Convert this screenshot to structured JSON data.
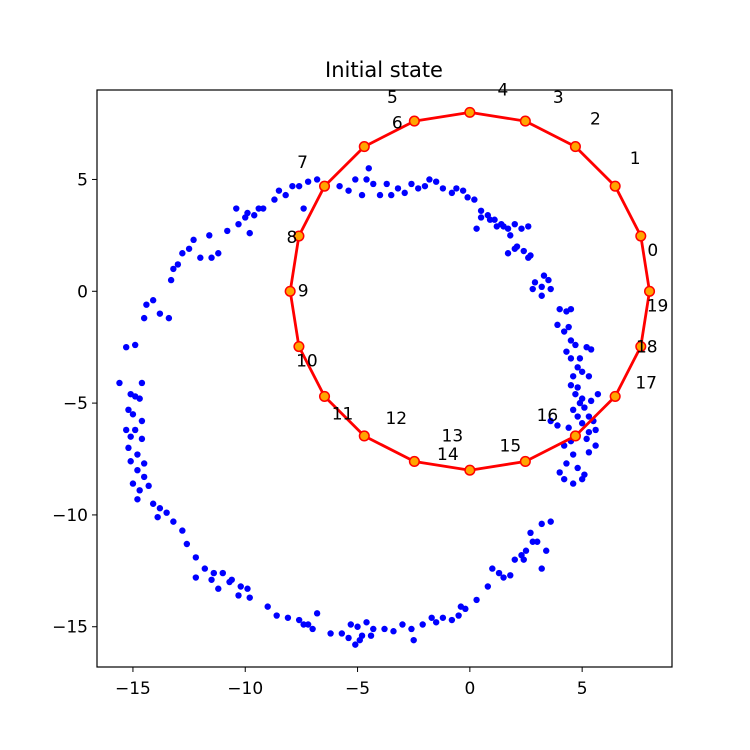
{
  "chart_data": {
    "type": "scatter",
    "title": "Initial state",
    "xlabel": "",
    "ylabel": "",
    "xlim": [
      -16.6,
      9.0
    ],
    "ylim": [
      -16.8,
      9.0
    ],
    "xticks": [
      -15,
      -10,
      -5,
      0,
      5
    ],
    "yticks": [
      -15,
      -10,
      -5,
      0,
      5
    ],
    "xtick_labels": [
      "−15",
      "−10",
      "−5",
      "0",
      "5"
    ],
    "ytick_labels": [
      "−15",
      "−10",
      "−5",
      "0",
      "5"
    ],
    "grid": false,
    "legend": "none",
    "colors": {
      "points": "#0000ff",
      "path": "#ff0000",
      "node_fill": "#ffa500",
      "node_edge": "#ff0000"
    },
    "series": [
      {
        "kind": "scatter",
        "points": [
          [
            -15.6,
            -4.1
          ],
          [
            -15.1,
            -4.6
          ],
          [
            -15.2,
            -5.3
          ],
          [
            -14.9,
            -4.7
          ],
          [
            -14.6,
            -4.1
          ],
          [
            -14.7,
            -4.8
          ],
          [
            -15.0,
            -5.5
          ],
          [
            -14.6,
            -5.8
          ],
          [
            -15.3,
            -6.2
          ],
          [
            -15.1,
            -6.5
          ],
          [
            -14.9,
            -6.2
          ],
          [
            -14.6,
            -6.6
          ],
          [
            -15.2,
            -7.0
          ],
          [
            -14.8,
            -7.3
          ],
          [
            -15.1,
            -7.6
          ],
          [
            -14.5,
            -7.7
          ],
          [
            -14.8,
            -8.0
          ],
          [
            -14.5,
            -8.3
          ],
          [
            -15.0,
            -8.6
          ],
          [
            -14.7,
            -8.9
          ],
          [
            -14.3,
            -8.7
          ],
          [
            -14.8,
            -9.3
          ],
          [
            -14.1,
            -9.5
          ],
          [
            -13.8,
            -9.7
          ],
          [
            -13.9,
            -10.1
          ],
          [
            -13.5,
            -9.9
          ],
          [
            -13.2,
            -10.3
          ],
          [
            -12.8,
            -10.7
          ],
          [
            -12.6,
            -11.3
          ],
          [
            -12.2,
            -11.9
          ],
          [
            -11.8,
            -12.4
          ],
          [
            -11.4,
            -12.6
          ],
          [
            -11.0,
            -12.6
          ],
          [
            -10.6,
            -12.9
          ],
          [
            -10.2,
            -13.2
          ],
          [
            -9.8,
            -13.7
          ],
          [
            -12.2,
            -12.8
          ],
          [
            -11.5,
            -12.9
          ],
          [
            -11.2,
            -13.3
          ],
          [
            -10.7,
            -13.0
          ],
          [
            -10.3,
            -13.6
          ],
          [
            -9.9,
            -13.3
          ],
          [
            -9.0,
            -14.1
          ],
          [
            -8.6,
            -14.5
          ],
          [
            -8.1,
            -14.6
          ],
          [
            -7.6,
            -14.7
          ],
          [
            -7.2,
            -14.9
          ],
          [
            -7.0,
            -15.1
          ],
          [
            -7.4,
            -14.9
          ],
          [
            -6.8,
            -14.4
          ],
          [
            -6.2,
            -15.3
          ],
          [
            -5.7,
            -15.3
          ],
          [
            -5.3,
            -14.9
          ],
          [
            -5.0,
            -15.0
          ],
          [
            -4.8,
            -15.4
          ],
          [
            -4.6,
            -14.8
          ],
          [
            -4.3,
            -15.1
          ],
          [
            -5.1,
            -15.8
          ],
          [
            -5.4,
            -15.5
          ],
          [
            -4.9,
            -15.6
          ],
          [
            -4.4,
            -15.4
          ],
          [
            -3.8,
            -15.1
          ],
          [
            -3.4,
            -15.2
          ],
          [
            -3.0,
            -14.9
          ],
          [
            -2.6,
            -15.1
          ],
          [
            -2.5,
            -15.6
          ],
          [
            -2.1,
            -14.9
          ],
          [
            -1.7,
            -14.6
          ],
          [
            -1.5,
            -14.8
          ],
          [
            -1.2,
            -14.6
          ],
          [
            -0.8,
            -14.7
          ],
          [
            -0.5,
            -14.5
          ],
          [
            -0.2,
            -14.2
          ],
          [
            0.3,
            -13.8
          ],
          [
            -0.4,
            -14.1
          ],
          [
            0.8,
            -13.2
          ],
          [
            1.3,
            -12.6
          ],
          [
            1.0,
            -12.4
          ],
          [
            1.5,
            -12.8
          ],
          [
            1.8,
            -12.7
          ],
          [
            2.0,
            -12.0
          ],
          [
            2.3,
            -11.8
          ],
          [
            2.5,
            -11.6
          ],
          [
            2.8,
            -11.2
          ],
          [
            3.2,
            -10.4
          ],
          [
            3.6,
            -10.3
          ],
          [
            3.0,
            -11.2
          ],
          [
            3.4,
            -11.6
          ],
          [
            3.2,
            -12.4
          ],
          [
            2.7,
            -10.8
          ],
          [
            2.4,
            -12.0
          ],
          [
            -15.3,
            -2.5
          ],
          [
            -14.9,
            -2.4
          ],
          [
            -14.5,
            -1.2
          ],
          [
            -14.4,
            -0.6
          ],
          [
            -14.1,
            -0.4
          ],
          [
            -13.8,
            -1.0
          ],
          [
            -13.4,
            -1.2
          ],
          [
            -13.3,
            0.5
          ],
          [
            -13.2,
            1.0
          ],
          [
            -13.0,
            1.2
          ],
          [
            -12.8,
            1.7
          ],
          [
            -12.5,
            1.9
          ],
          [
            -12.3,
            2.3
          ],
          [
            -12.0,
            1.5
          ],
          [
            -11.5,
            1.5
          ],
          [
            -11.6,
            2.5
          ],
          [
            -11.2,
            1.7
          ],
          [
            -10.8,
            2.7
          ],
          [
            -10.4,
            3.7
          ],
          [
            -10.3,
            3.0
          ],
          [
            -10.0,
            3.3
          ],
          [
            -9.9,
            3.5
          ],
          [
            -9.8,
            2.6
          ],
          [
            -9.6,
            3.4
          ],
          [
            -9.4,
            3.7
          ],
          [
            -9.2,
            3.7
          ],
          [
            -8.7,
            4.1
          ],
          [
            -8.5,
            4.5
          ],
          [
            -8.2,
            4.3
          ],
          [
            -7.9,
            4.7
          ],
          [
            -7.6,
            4.7
          ],
          [
            -7.4,
            3.7
          ],
          [
            -7.2,
            4.9
          ],
          [
            -6.8,
            5.0
          ],
          [
            -6.4,
            4.7
          ],
          [
            -5.8,
            4.7
          ],
          [
            -5.4,
            4.5
          ],
          [
            -5.1,
            5.0
          ],
          [
            -4.8,
            4.3
          ],
          [
            -4.6,
            5.0
          ],
          [
            -4.5,
            5.5
          ],
          [
            -4.3,
            4.8
          ],
          [
            -4.0,
            4.3
          ],
          [
            -3.7,
            4.8
          ],
          [
            -3.5,
            4.3
          ],
          [
            -3.2,
            4.6
          ],
          [
            -2.9,
            4.4
          ],
          [
            -2.6,
            4.8
          ],
          [
            -2.3,
            4.6
          ],
          [
            -2.0,
            4.7
          ],
          [
            -1.8,
            5.0
          ],
          [
            -1.5,
            4.9
          ],
          [
            -1.2,
            4.6
          ],
          [
            -0.8,
            4.4
          ],
          [
            -0.6,
            4.6
          ],
          [
            -0.3,
            4.5
          ],
          [
            -0.1,
            4.2
          ],
          [
            0.2,
            4.1
          ],
          [
            0.5,
            3.6
          ],
          [
            0.8,
            3.4
          ],
          [
            1.1,
            3.2
          ],
          [
            1.4,
            3.0
          ],
          [
            1.7,
            2.8
          ],
          [
            2.0,
            3.0
          ],
          [
            2.3,
            2.8
          ],
          [
            2.6,
            2.9
          ],
          [
            0.3,
            2.8
          ],
          [
            0.5,
            3.3
          ],
          [
            0.9,
            3.2
          ],
          [
            1.2,
            2.9
          ],
          [
            1.5,
            2.9
          ],
          [
            1.8,
            2.5
          ],
          [
            2.1,
            2.0
          ],
          [
            2.4,
            1.8
          ],
          [
            2.7,
            1.6
          ],
          [
            1.7,
            1.7
          ],
          [
            2.0,
            1.9
          ],
          [
            2.6,
            1.5
          ],
          [
            2.9,
            0.4
          ],
          [
            3.2,
            0.2
          ],
          [
            3.5,
            0.5
          ],
          [
            3.3,
            0.7
          ],
          [
            3.6,
            0.1
          ],
          [
            2.8,
            0.1
          ],
          [
            3.2,
            -0.2
          ],
          [
            4.0,
            -0.8
          ],
          [
            4.3,
            -0.9
          ],
          [
            4.5,
            -0.8
          ],
          [
            3.9,
            -1.5
          ],
          [
            4.2,
            -1.8
          ],
          [
            4.4,
            -1.6
          ],
          [
            4.5,
            -2.2
          ],
          [
            4.7,
            -2.4
          ],
          [
            4.3,
            -2.7
          ],
          [
            4.5,
            -3.0
          ],
          [
            4.8,
            -3.4
          ],
          [
            4.9,
            -3.0
          ],
          [
            5.2,
            -2.5
          ],
          [
            5.4,
            -2.6
          ],
          [
            5.0,
            -3.6
          ],
          [
            5.3,
            -3.8
          ],
          [
            4.6,
            -3.8
          ],
          [
            4.5,
            -4.2
          ],
          [
            4.7,
            -4.6
          ],
          [
            4.9,
            -5.0
          ],
          [
            5.1,
            -5.2
          ],
          [
            4.6,
            -5.3
          ],
          [
            4.8,
            -5.6
          ],
          [
            5.0,
            -5.9
          ],
          [
            5.3,
            -6.3
          ],
          [
            4.4,
            -6.1
          ],
          [
            4.5,
            -6.7
          ],
          [
            4.2,
            -6.9
          ],
          [
            4.6,
            -7.3
          ],
          [
            4.3,
            -7.7
          ],
          [
            4.8,
            -7.9
          ],
          [
            5.0,
            -8.4
          ],
          [
            4.6,
            -8.6
          ],
          [
            5.1,
            -8.2
          ],
          [
            5.3,
            -7.2
          ],
          [
            5.6,
            -6.9
          ],
          [
            5.2,
            -6.6
          ],
          [
            4.2,
            -8.4
          ],
          [
            3.6,
            -5.8
          ],
          [
            3.9,
            -6.0
          ],
          [
            5.5,
            -5.8
          ],
          [
            5.7,
            -4.6
          ],
          [
            4.8,
            -4.3
          ],
          [
            5.0,
            -4.8
          ],
          [
            5.3,
            -5.6
          ],
          [
            5.6,
            -6.2
          ],
          [
            5.4,
            -4.9
          ],
          [
            4.0,
            -8.1
          ]
        ]
      },
      {
        "kind": "path",
        "closed": true,
        "nodes": [
          {
            "label": "0",
            "x": 7.61,
            "y": 2.47
          },
          {
            "label": "1",
            "x": 6.47,
            "y": 4.7
          },
          {
            "label": "2",
            "x": 4.7,
            "y": 6.47
          },
          {
            "label": "3",
            "x": 2.47,
            "y": 7.61
          },
          {
            "label": "4",
            "x": 0.0,
            "y": 8.0
          },
          {
            "label": "5",
            "x": -2.47,
            "y": 7.61
          },
          {
            "label": "6",
            "x": -4.7,
            "y": 6.47
          },
          {
            "label": "7",
            "x": -6.47,
            "y": 4.7
          },
          {
            "label": "8",
            "x": -7.61,
            "y": 2.47
          },
          {
            "label": "9",
            "x": -8.0,
            "y": 0.0
          },
          {
            "label": "10",
            "x": -7.61,
            "y": -2.47
          },
          {
            "label": "11",
            "x": -6.47,
            "y": -4.7
          },
          {
            "label": "12",
            "x": -4.7,
            "y": -6.47
          },
          {
            "label": "13",
            "x": -2.47,
            "y": -7.61
          },
          {
            "label": "14",
            "x": 0.0,
            "y": -8.0
          },
          {
            "label": "15",
            "x": 2.47,
            "y": -7.61
          },
          {
            "label": "16",
            "x": 4.7,
            "y": -6.47
          },
          {
            "label": "17",
            "x": 6.47,
            "y": -4.7
          },
          {
            "label": "18",
            "x": 7.61,
            "y": -2.47
          },
          {
            "label": "19",
            "x": 8.0,
            "y": 0.0
          }
        ]
      }
    ]
  }
}
